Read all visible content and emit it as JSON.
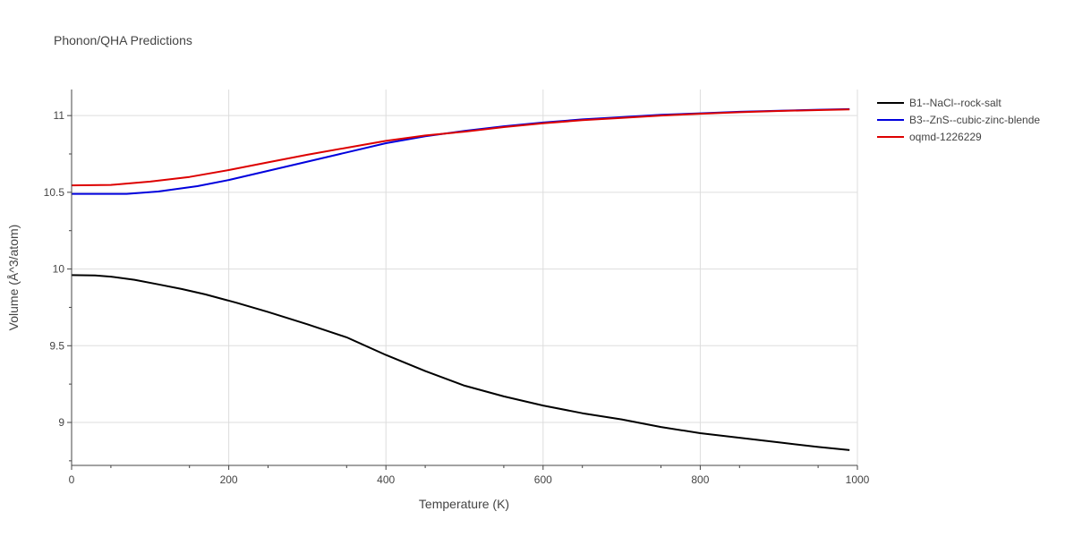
{
  "chart_data": {
    "type": "line",
    "title": "Phonon/QHA Predictions",
    "xlabel": "Temperature (K)",
    "ylabel": "Volume (Å^3/atom)",
    "xlim": [
      0,
      1000
    ],
    "ylim": [
      8.72,
      11.17
    ],
    "xticks": [
      0,
      200,
      400,
      600,
      800,
      1000
    ],
    "yticks": [
      9,
      9.5,
      10,
      10.5,
      11
    ],
    "grid": true,
    "legend_position": "top-right",
    "series": [
      {
        "name": "B1--NaCl--rock-salt",
        "color": "#000000",
        "x": [
          0,
          30,
          50,
          80,
          110,
          140,
          170,
          210,
          250,
          300,
          350,
          400,
          450,
          500,
          550,
          600,
          650,
          700,
          750,
          800,
          850,
          900,
          950,
          990
        ],
        "y": [
          9.96,
          9.958,
          9.95,
          9.93,
          9.9,
          9.87,
          9.835,
          9.78,
          9.72,
          9.64,
          9.555,
          9.44,
          9.335,
          9.24,
          9.17,
          9.11,
          9.06,
          9.02,
          8.97,
          8.93,
          8.9,
          8.87,
          8.84,
          8.82
        ]
      },
      {
        "name": "B3--ZnS--cubic-zinc-blende",
        "color": "#0000dd",
        "x": [
          0,
          40,
          70,
          110,
          160,
          200,
          250,
          300,
          350,
          400,
          450,
          500,
          550,
          600,
          650,
          700,
          750,
          800,
          850,
          900,
          950,
          990
        ],
        "y": [
          10.49,
          10.49,
          10.49,
          10.505,
          10.54,
          10.58,
          10.64,
          10.7,
          10.76,
          10.82,
          10.865,
          10.9,
          10.93,
          10.955,
          10.975,
          10.99,
          11.005,
          11.015,
          11.025,
          11.032,
          11.038,
          11.042
        ]
      },
      {
        "name": "oqmd-1226229",
        "color": "#dd0000",
        "x": [
          0,
          50,
          100,
          150,
          200,
          250,
          300,
          350,
          400,
          450,
          500,
          550,
          600,
          650,
          700,
          750,
          800,
          850,
          900,
          950,
          990
        ],
        "y": [
          10.545,
          10.548,
          10.57,
          10.6,
          10.645,
          10.695,
          10.745,
          10.79,
          10.835,
          10.87,
          10.895,
          10.925,
          10.95,
          10.97,
          10.985,
          11.0,
          11.012,
          11.022,
          11.03,
          11.036,
          11.04
        ]
      }
    ]
  }
}
